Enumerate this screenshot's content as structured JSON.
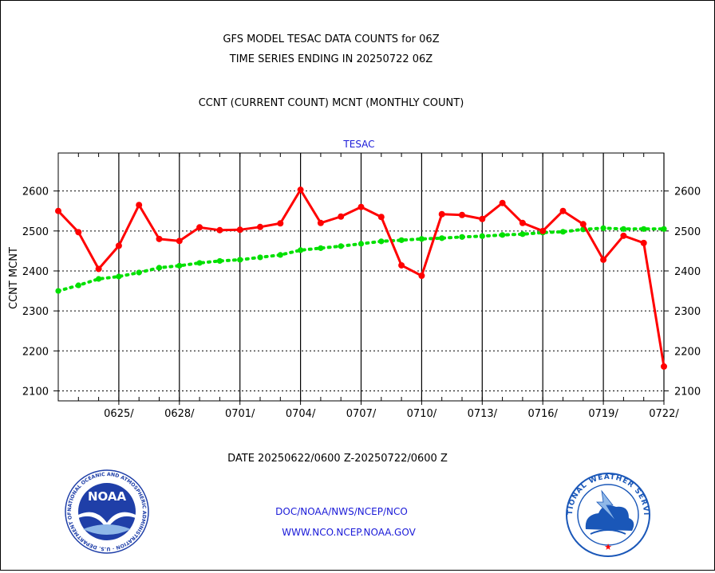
{
  "chart_data": {
    "type": "line",
    "title": [
      "GFS MODEL TESAC DATA COUNTS for 06Z",
      "TIME SERIES ENDING IN 20250722 06Z"
    ],
    "subtitle": "CCNT (CURRENT COUNT) MCNT (MONTHLY COUNT)",
    "panel_label": "TESAC",
    "ylabel": [
      "CCNT",
      "MCNT"
    ],
    "ylim": [
      2075,
      2695
    ],
    "yticks": [
      2100,
      2200,
      2300,
      2400,
      2500,
      2600
    ],
    "xlim": [
      0,
      30
    ],
    "xticks": [
      {
        "x": 3,
        "label": "0625/"
      },
      {
        "x": 6,
        "label": "0628/"
      },
      {
        "x": 9,
        "label": "0701/"
      },
      {
        "x": 12,
        "label": "0704/"
      },
      {
        "x": 15,
        "label": "0707/"
      },
      {
        "x": 18,
        "label": "0710/"
      },
      {
        "x": 21,
        "label": "0713/"
      },
      {
        "x": 24,
        "label": "0716/"
      },
      {
        "x": 27,
        "label": "0719/"
      },
      {
        "x": 30,
        "label": "0722/"
      }
    ],
    "xlabel": "DATE 20250622/0600 Z-20250722/0600 Z",
    "series": [
      {
        "name": "CCNT",
        "color": "#ff0000",
        "style": "solid",
        "values": [
          2550,
          2497,
          2405,
          2463,
          2565,
          2480,
          2475,
          2509,
          2502,
          2503,
          2510,
          2519,
          2603,
          2520,
          2536,
          2560,
          2535,
          2414,
          2388,
          2542,
          2540,
          2530,
          2570,
          2520,
          2500,
          2550,
          2517,
          2428,
          2488,
          2470,
          2161
        ]
      },
      {
        "name": "MCNT",
        "color": "#00e000",
        "style": "dotted",
        "values": [
          2350,
          2364,
          2380,
          2386,
          2396,
          2408,
          2413,
          2420,
          2425,
          2428,
          2434,
          2440,
          2452,
          2457,
          2462,
          2468,
          2474,
          2477,
          2480,
          2482,
          2485,
          2487,
          2490,
          2492,
          2496,
          2498,
          2504,
          2507,
          2505,
          2505,
          2505
        ]
      }
    ]
  },
  "footer": {
    "links": [
      "DOC/NOAA/NWS/NCEP/NCO",
      "WWW.NCO.NCEP.NOAA.GOV"
    ],
    "noaa_logo": {
      "text": "NOAA",
      "ring_text": "NATIONAL OCEANIC AND ATMOSPHERIC ADMINISTRATION · U.S. DEPARTMENT OF COMMERCE"
    },
    "nws_logo": {
      "ring_text": "NATIONAL WEATHER SERVICE"
    }
  },
  "colors": {
    "ccnt": "#ff0000",
    "mcnt": "#00e000",
    "link": "#1a1ad8",
    "noaa_blue": "#1f3fa8",
    "nws_blue": "#1a57b8"
  }
}
